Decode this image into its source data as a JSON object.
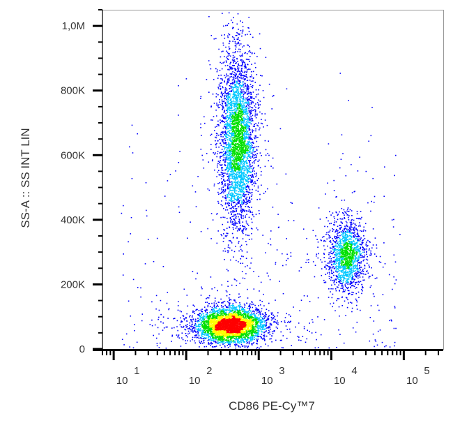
{
  "chart_data": {
    "type": "scatter",
    "subtype": "flow-cytometry-density-dot-plot",
    "xlabel": "CD86 PE-Cy™7",
    "ylabel": "SS-A :: SS INT LIN",
    "x_scale": "log",
    "xlim": [
      7,
      350000
    ],
    "x_ticks": [
      {
        "value": 10,
        "base": "10",
        "exp": "1"
      },
      {
        "value": 100,
        "base": "10",
        "exp": "2"
      },
      {
        "value": 1000,
        "base": "10",
        "exp": "3"
      },
      {
        "value": 10000,
        "base": "10",
        "exp": "4"
      },
      {
        "value": 100000,
        "base": "10",
        "exp": "5"
      }
    ],
    "y_scale": "linear",
    "ylim": [
      0,
      1050000
    ],
    "y_ticks": [
      {
        "value": 0,
        "label": "0"
      },
      {
        "value": 200000,
        "label": "200K"
      },
      {
        "value": 400000,
        "label": "400K"
      },
      {
        "value": 600000,
        "label": "600K"
      },
      {
        "value": 800000,
        "label": "800K"
      },
      {
        "value": 1000000,
        "label": "1,0M"
      }
    ],
    "grid": false,
    "legend": "none",
    "density_colormap": [
      "#0000ff",
      "#00c8ff",
      "#00e000",
      "#ffff00",
      "#ff0000"
    ],
    "populations": [
      {
        "x_median": 500,
        "x_log_sd": 0.12,
        "y_mean": 650000,
        "y_sd": 130000,
        "events": 3500
      },
      {
        "x_median": 400,
        "x_log_sd": 0.22,
        "y_mean": 75000,
        "y_sd": 25000,
        "events": 4000
      },
      {
        "x_median": 16000,
        "x_log_sd": 0.13,
        "y_mean": 290000,
        "y_sd": 55000,
        "events": 1500
      }
    ]
  }
}
